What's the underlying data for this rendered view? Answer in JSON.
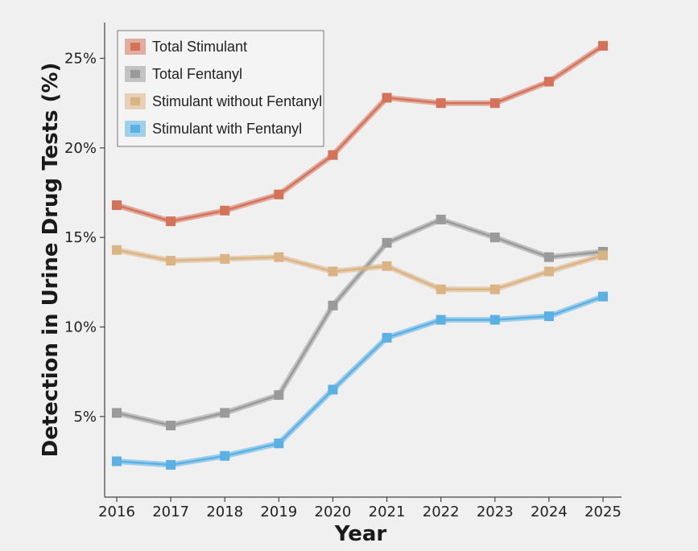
{
  "chart_data": {
    "type": "line",
    "xlabel": "Year",
    "ylabel": "Detection in Urine Drug Tests (%)",
    "x": [
      "2016",
      "2017",
      "2018",
      "2019",
      "2020",
      "2021",
      "2022",
      "2023",
      "2024",
      "2025"
    ],
    "yticks": [
      5,
      10,
      15,
      20,
      25
    ],
    "ytick_labels": [
      "5%",
      "10%",
      "15%",
      "20%",
      "25%"
    ],
    "ylim": [
      0.5,
      27
    ],
    "grid": false,
    "legend_position": "top-left",
    "series": [
      {
        "name": "Total Stimulant",
        "color": "#d4735a",
        "values": [
          16.8,
          15.9,
          16.5,
          17.4,
          19.6,
          22.8,
          22.5,
          22.5,
          23.7,
          25.7
        ]
      },
      {
        "name": "Total Fentanyl",
        "color": "#9a9a9a",
        "values": [
          5.2,
          4.5,
          5.2,
          6.2,
          11.2,
          14.7,
          16.0,
          15.0,
          13.9,
          14.2
        ]
      },
      {
        "name": "Stimulant without Fentanyl",
        "color": "#dbb485",
        "values": [
          14.3,
          13.7,
          13.8,
          13.9,
          13.1,
          13.4,
          12.1,
          12.1,
          13.1,
          14.0
        ]
      },
      {
        "name": "Stimulant with Fentanyl",
        "color": "#5bb1e4",
        "values": [
          2.5,
          2.3,
          2.8,
          3.5,
          6.5,
          9.4,
          10.4,
          10.4,
          10.6,
          11.7
        ]
      }
    ]
  }
}
